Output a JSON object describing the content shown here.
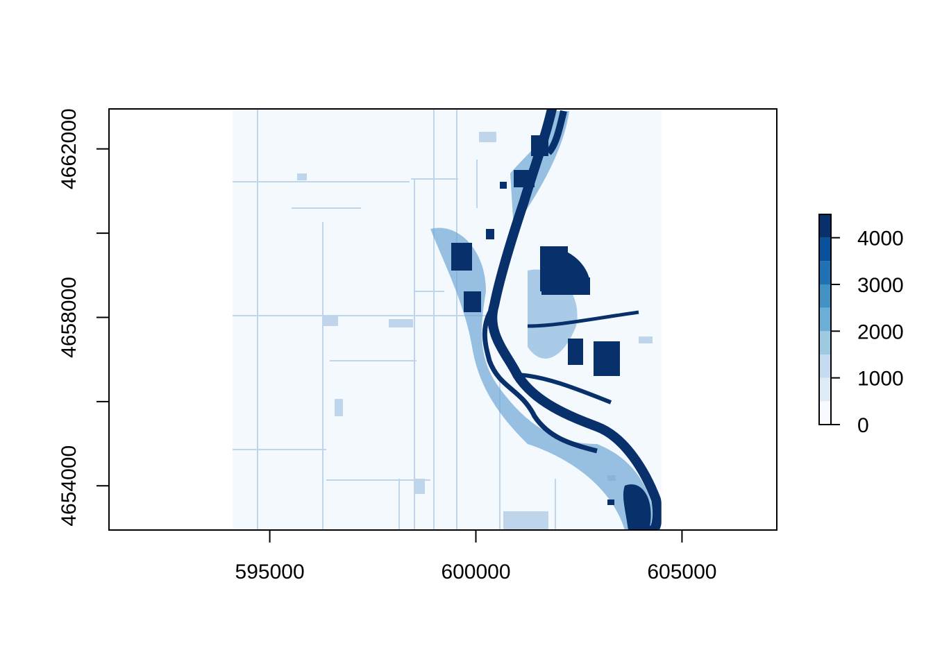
{
  "chart_data": {
    "type": "heatmap",
    "title": "",
    "xlabel": "",
    "ylabel": "",
    "xlim": [
      591100,
      607300
    ],
    "ylim": [
      4652950,
      4662950
    ],
    "raster_extent": {
      "x": [
        594100,
        604500
      ],
      "y": [
        4652950,
        4662950
      ]
    },
    "x_ticks": [
      595000,
      600000,
      605000
    ],
    "y_ticks": [
      4654000,
      4656000,
      4658000,
      4660000,
      4662000
    ],
    "x_tick_labels": [
      "595000",
      "600000",
      "605000"
    ],
    "y_tick_labels": [
      "4654000",
      "4658000",
      "4662000"
    ],
    "legend": {
      "placement": "right",
      "min": 0,
      "max": 4500,
      "breaks": [
        0,
        500,
        1000,
        1500,
        2000,
        2500,
        3000,
        3500,
        4000,
        4500
      ],
      "colors": [
        "#F7FBFF",
        "#DEEBF7",
        "#C6DBEF",
        "#9ECAE1",
        "#6BAED6",
        "#4292C6",
        "#2171B5",
        "#08519C",
        "#08306B"
      ],
      "ticks": [
        0,
        1000,
        2000,
        3000,
        4000
      ],
      "tick_labels": [
        "0",
        "1000",
        "2000",
        "3000",
        "4000"
      ]
    },
    "grid": false
  },
  "colors": {
    "background": "#F4F9FE",
    "low": "#BFD5EC",
    "medium": "#6EA6D5",
    "high": "#08306B"
  }
}
